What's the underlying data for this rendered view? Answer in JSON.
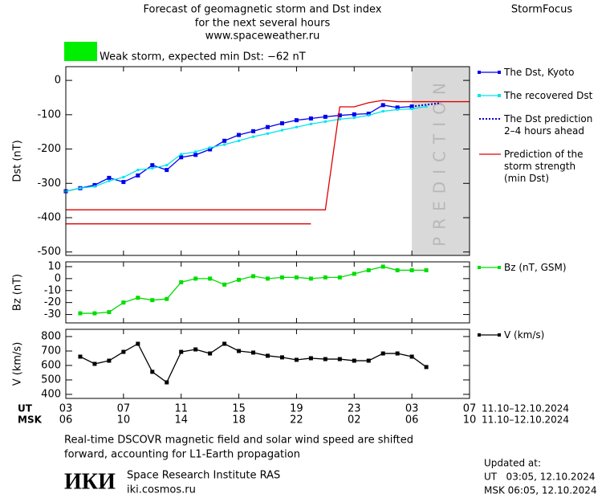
{
  "header": {
    "title_lines": [
      "Forecast of geomagnetic storm and Dst index",
      "for the next several hours",
      "www.spaceweather.ru"
    ],
    "brand": "StormFocus"
  },
  "alert": {
    "text": "Weak storm, expected min Dst: −62 nT",
    "color": "#00ee00"
  },
  "chart_data": [
    {
      "type": "line",
      "ylabel": "Dst (nT)",
      "xlim": [
        0,
        28
      ],
      "ylim": [
        -510,
        40
      ],
      "yticks": [
        0,
        -100,
        -200,
        -300,
        -400,
        -500
      ],
      "prediction_band": {
        "label": "PREDICTION",
        "from": 24,
        "to": 28,
        "color": "#d9d9d9"
      },
      "series": [
        {
          "name": "The Dst, Kyoto",
          "color": "#0000ee",
          "marker": "square",
          "x": [
            0,
            1,
            2,
            3,
            4,
            5,
            6,
            7,
            8,
            9,
            10,
            11,
            12,
            13,
            14,
            15,
            16,
            17,
            18,
            19,
            20,
            21,
            22,
            23,
            24
          ],
          "values": [
            -323,
            -314,
            -305,
            -284,
            -296,
            -277,
            -247,
            -261,
            -224,
            -217,
            -201,
            -176,
            -159,
            -148,
            -136,
            -125,
            -116,
            -111,
            -106,
            -102,
            -99,
            -97,
            -72,
            -79,
            -76
          ]
        },
        {
          "name": "The recovered Dst",
          "color": "#00e5ee",
          "marker": "small-square",
          "x": [
            0,
            1,
            2,
            3,
            4,
            5,
            6,
            7,
            8,
            9,
            10,
            11,
            12,
            13,
            14,
            15,
            16,
            17,
            18,
            19,
            20,
            21,
            22,
            23,
            24,
            25
          ],
          "values": [
            -323,
            -314,
            -309,
            -293,
            -282,
            -261,
            -256,
            -247,
            -215,
            -208,
            -196,
            -187,
            -176,
            -164,
            -155,
            -145,
            -136,
            -127,
            -120,
            -113,
            -109,
            -102,
            -90,
            -85,
            -83,
            -76
          ]
        },
        {
          "name": "The Dst prediction\n2–4 hours ahead",
          "color": "#0000cc",
          "dash": "dotted",
          "x": [
            24,
            26
          ],
          "values": [
            -76,
            -66
          ]
        },
        {
          "name": "Prediction of the\nstorm strength\n(min Dst)",
          "color": "#dd0000",
          "x": [
            0,
            18,
            19,
            20,
            21,
            22,
            23,
            28
          ],
          "values": [
            -377,
            -377,
            -77,
            -77,
            -65,
            -58,
            -62,
            -62
          ]
        },
        {
          "color": "#dd0000",
          "x": [
            0,
            17
          ],
          "values": [
            -418,
            -418
          ]
        }
      ]
    },
    {
      "type": "line",
      "ylabel": "Bz (nT)",
      "xlim": [
        0,
        28
      ],
      "ylim": [
        -37,
        14
      ],
      "yticks": [
        10,
        0,
        -10,
        -20,
        -30
      ],
      "series": [
        {
          "name": "Bz (nT, GSM)",
          "color": "#00dd00",
          "marker": "square",
          "x": [
            1,
            2,
            3,
            4,
            5,
            6,
            7,
            8,
            9,
            10,
            11,
            12,
            13,
            14,
            15,
            16,
            17,
            18,
            19,
            20,
            21,
            22,
            23,
            24,
            25
          ],
          "values": [
            -29,
            -29,
            -28,
            -20,
            -16,
            -18,
            -17,
            -3,
            0,
            0,
            -5,
            -1,
            2,
            0,
            1,
            1,
            0,
            1,
            1,
            4,
            7,
            10,
            7,
            7,
            7
          ]
        }
      ]
    },
    {
      "type": "line",
      "ylabel": "V (km/s)",
      "xlim": [
        0,
        28
      ],
      "ylim": [
        372,
        850
      ],
      "yticks": [
        800,
        700,
        600,
        500,
        400
      ],
      "xticks": [
        {
          "value": 0,
          "label": "03"
        },
        {
          "value": 4,
          "label": "07"
        },
        {
          "value": 8,
          "label": "11"
        },
        {
          "value": 12,
          "label": "15"
        },
        {
          "value": 16,
          "label": "19"
        },
        {
          "value": 20,
          "label": "23"
        },
        {
          "value": 24,
          "label": "03"
        },
        {
          "value": 28,
          "label": "07"
        }
      ],
      "x2ticks": [
        {
          "value": 0,
          "label": "06"
        },
        {
          "value": 4,
          "label": "10"
        },
        {
          "value": 8,
          "label": "14"
        },
        {
          "value": 12,
          "label": "18"
        },
        {
          "value": 16,
          "label": "22"
        },
        {
          "value": 20,
          "label": "02"
        },
        {
          "value": 24,
          "label": "06"
        },
        {
          "value": 28,
          "label": "10"
        }
      ],
      "xlabel": "UT",
      "x2label": "MSK",
      "date_range": "11.10–12.10.2024",
      "series": [
        {
          "name": "V (km/s)",
          "color": "#000000",
          "marker": "square",
          "x": [
            1,
            2,
            3,
            4,
            5,
            6,
            7,
            8,
            9,
            10,
            11,
            12,
            13,
            14,
            15,
            16,
            17,
            18,
            19,
            20,
            21,
            22,
            23,
            24,
            25
          ],
          "values": [
            661,
            611,
            633,
            694,
            750,
            556,
            483,
            694,
            711,
            683,
            750,
            700,
            689,
            667,
            656,
            639,
            650,
            644,
            644,
            633,
            633,
            683,
            683,
            661,
            589
          ]
        }
      ]
    }
  ],
  "footer": {
    "note_lines": [
      "Real-time DSCOVR magnetic field and solar wind speed are shifted",
      "forward, accounting for L1-Earth propagation"
    ],
    "logo": "ИКИ",
    "institute": "Space Research Institute RAS",
    "url": "iki.cosmos.ru",
    "updated_lines": [
      "Updated at:",
      "UT   03:05, 12.10.2024",
      "MSK 06:05, 12.10.2024"
    ]
  }
}
